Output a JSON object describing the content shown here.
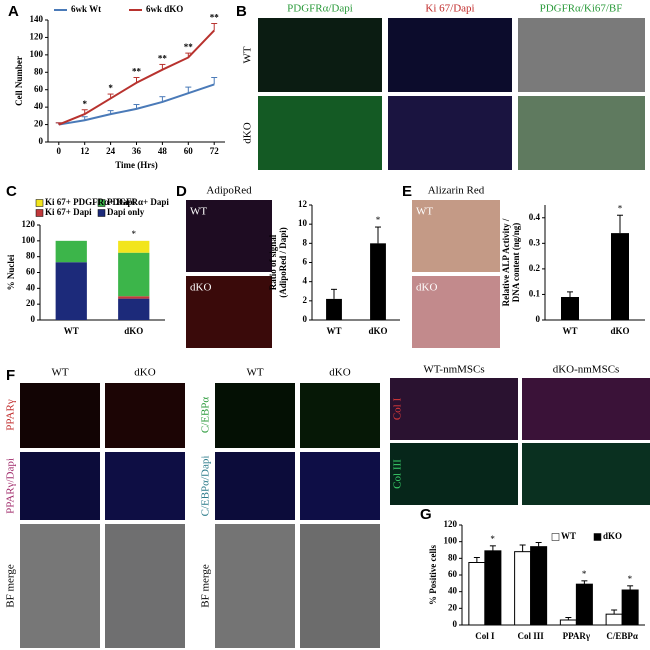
{
  "panel_labels": [
    "A",
    "B",
    "C",
    "D",
    "E",
    "F",
    "G"
  ],
  "images": {
    "B": {
      "columns": [
        "PDGFRα/Dapi",
        "Ki 67/Dapi",
        "PDGFRα/Ki67/BF"
      ],
      "rows": [
        "WT",
        "dKO"
      ]
    },
    "D": {
      "title": "AdipoRed",
      "labels": [
        "WT",
        "dKO"
      ]
    },
    "E": {
      "title": "Alizarin Red",
      "labels": [
        "WT",
        "dKO"
      ]
    },
    "F": {
      "columns": [
        "WT",
        "dKO",
        "WT",
        "dKO"
      ],
      "rows_left": [
        "PPARγ",
        "PPARγ/Dapi",
        "BF merge"
      ],
      "rows_right": [
        "C/EBPα",
        "C/EBPα/Dapi",
        "BF merge"
      ],
      "nm_columns": [
        "WT-nmMSCs",
        "dKO-nmMSCs"
      ],
      "nm_rows": [
        "Col I",
        "Col III"
      ]
    }
  },
  "chart_data": [
    {
      "type": "line",
      "x_label": "Time (Hrs)",
      "y_label": [
        "Cell Number"
      ],
      "x": [
        0,
        12,
        24,
        36,
        48,
        60,
        72
      ],
      "xlim": [
        -5,
        77
      ],
      "xticks": [
        0,
        12,
        24,
        36,
        48,
        60,
        72
      ],
      "ylim": [
        0,
        140
      ],
      "yticks": [
        0,
        20,
        40,
        60,
        80,
        100,
        120,
        140
      ],
      "series": [
        {
          "name": "6wk Wt",
          "color": "#4a7ab8",
          "values": [
            20,
            25,
            32,
            38,
            46,
            56,
            66
          ],
          "errors": [
            2,
            4,
            4,
            5,
            6,
            7,
            8
          ]
        },
        {
          "name": "6wk dKO",
          "color": "#b8322e",
          "values": [
            20,
            32,
            50,
            68,
            83,
            97,
            128
          ],
          "errors": [
            2,
            5,
            5,
            6,
            6,
            5,
            8
          ]
        }
      ],
      "annotations": [
        null,
        "*",
        "*",
        "**",
        "**",
        "**",
        "**"
      ]
    },
    {
      "type": "bar",
      "stacked": true,
      "y_label": [
        "% Nuclei"
      ],
      "categories": [
        "WT",
        "dKO"
      ],
      "ylim": [
        0,
        120
      ],
      "yticks": [
        0,
        20,
        40,
        60,
        80,
        100,
        120
      ],
      "series": [
        {
          "name": "Dapi only",
          "color": "#1c2a7a",
          "values": [
            73,
            27
          ]
        },
        {
          "name": "Ki 67+ Dapi",
          "color": "#c0393b",
          "values": [
            0,
            3
          ]
        },
        {
          "name": "PDGFRα+ Dapi",
          "color": "#3cb54a",
          "values": [
            27,
            55
          ]
        },
        {
          "name": "Ki 67+ PDGFRα+ Dapi",
          "color": "#f2e51d",
          "values": [
            0,
            15
          ]
        }
      ],
      "annotations": [
        null,
        "*"
      ]
    },
    {
      "type": "bar",
      "y_label": [
        "Ratio of signal",
        "(AdipoRed / Dapi)"
      ],
      "categories": [
        "WT",
        "dKO"
      ],
      "ylim": [
        0,
        12
      ],
      "yticks": [
        0,
        2,
        4,
        6,
        8,
        10,
        12
      ],
      "color": "#000000",
      "values": [
        2.2,
        8.0
      ],
      "errors": [
        1.0,
        1.7
      ],
      "annotations": [
        null,
        "*"
      ]
    },
    {
      "type": "bar",
      "y_label": [
        "Relative ALP Activity /",
        "DNA content (ng/ng)"
      ],
      "categories": [
        "WT",
        "dKO"
      ],
      "ylim": [
        0,
        0.45
      ],
      "yticks": [
        0,
        0.1,
        0.2,
        0.3,
        0.4
      ],
      "color": "#000000",
      "values": [
        0.09,
        0.34
      ],
      "errors": [
        0.02,
        0.07
      ],
      "annotations": [
        null,
        "*"
      ]
    },
    {
      "type": "bar",
      "y_label": [
        "% Positive cells"
      ],
      "categories": [
        "Col I",
        "Col III",
        "PPARγ",
        "C/EBPα"
      ],
      "ylim": [
        0,
        120
      ],
      "yticks": [
        0,
        20,
        40,
        60,
        80,
        100,
        120
      ],
      "series": [
        {
          "name": "WT",
          "color": "#ffffff",
          "values": [
            75,
            88,
            6,
            13
          ],
          "errors": [
            6,
            8,
            3,
            5
          ]
        },
        {
          "name": "dKO",
          "color": "#000000",
          "values": [
            89,
            94,
            49,
            42
          ],
          "errors": [
            6,
            5,
            4,
            5
          ]
        }
      ],
      "annotations": [
        "*",
        null,
        "*",
        "*"
      ]
    }
  ]
}
